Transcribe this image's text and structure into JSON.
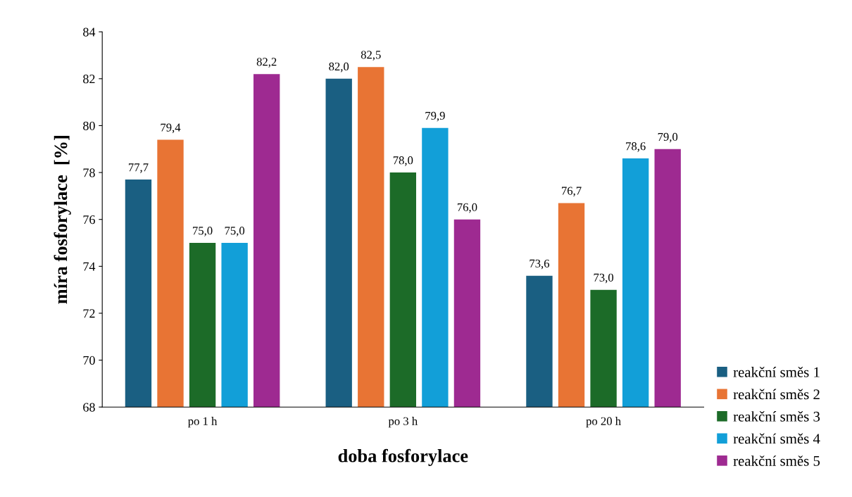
{
  "chart_data": {
    "type": "bar",
    "xlabel": "doba fosforylace",
    "ylabel": "míra fosforylace  [%]",
    "categories": [
      "po 1 h",
      "po 3 h",
      "po 20 h"
    ],
    "series": [
      {
        "name": "reakční směs 1",
        "color": "#1a5f82",
        "values": [
          77.7,
          82.0,
          73.6
        ],
        "value_labels": [
          "77,7",
          "82,0",
          "73,6"
        ]
      },
      {
        "name": "reakční směs 2",
        "color": "#e87434",
        "values": [
          79.4,
          82.5,
          76.7
        ],
        "value_labels": [
          "79,4",
          "82,5",
          "76,7"
        ]
      },
      {
        "name": "reakční směs 3",
        "color": "#1c6b28",
        "values": [
          75.0,
          78.0,
          73.0
        ],
        "value_labels": [
          "75,0",
          "78,0",
          "73,0"
        ]
      },
      {
        "name": "reakční směs 4",
        "color": "#129fd8",
        "values": [
          75.0,
          79.9,
          78.6
        ],
        "value_labels": [
          "75,0",
          "79,9",
          "78,6"
        ]
      },
      {
        "name": "reakční směs 5",
        "color": "#9e2a91",
        "values": [
          82.2,
          76.0,
          79.0
        ],
        "value_labels": [
          "82,2",
          "76,0",
          "79,0"
        ]
      }
    ],
    "ylim": [
      68,
      84
    ],
    "yticks": [
      68,
      70,
      72,
      74,
      76,
      78,
      80,
      82,
      84
    ],
    "grid": false,
    "legend": "bottom right"
  }
}
